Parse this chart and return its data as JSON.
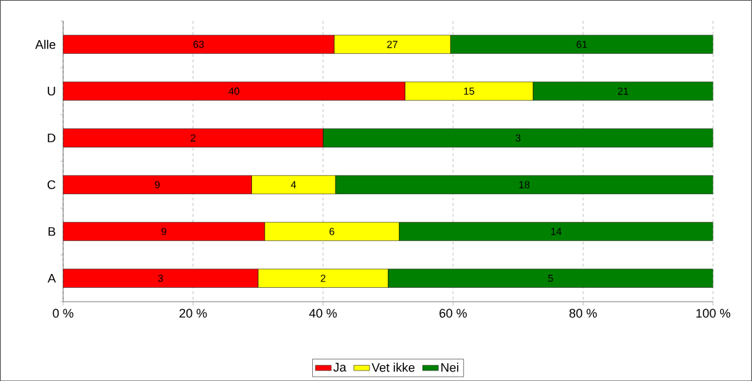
{
  "chart_data": {
    "type": "bar",
    "orientation": "horizontal",
    "stacked": true,
    "categories": [
      "Alle",
      "U",
      "D",
      "C",
      "B",
      "A"
    ],
    "series": [
      {
        "name": "Ja",
        "color": "#ff0000",
        "values": [
          41.7,
          52.6,
          40.0,
          29.0,
          31.0,
          30.0
        ]
      },
      {
        "name": "Vet ikke",
        "color": "#ffff00",
        "values": [
          17.9,
          19.7,
          0,
          12.9,
          20.7,
          20.0
        ]
      },
      {
        "name": "Nei",
        "color": "#008000",
        "values": [
          40.4,
          27.7,
          60.0,
          58.1,
          48.3,
          50.0
        ]
      }
    ],
    "annotations": [
      "63",
      "27",
      "61",
      "40",
      "15",
      "21",
      "2",
      "3",
      "9",
      "4",
      "18",
      "9",
      "6",
      "14",
      "3",
      "2",
      "5"
    ],
    "xlim": [
      0,
      100
    ],
    "xticks": [
      {
        "value": 0,
        "label": "0 %"
      },
      {
        "value": 20,
        "label": "20 %"
      },
      {
        "value": 40,
        "label": "40 %"
      },
      {
        "value": 60,
        "label": "60 %"
      },
      {
        "value": 80,
        "label": "80 %"
      },
      {
        "value": 100,
        "label": "100 %"
      }
    ],
    "grid": "x",
    "legend": "bottom"
  }
}
